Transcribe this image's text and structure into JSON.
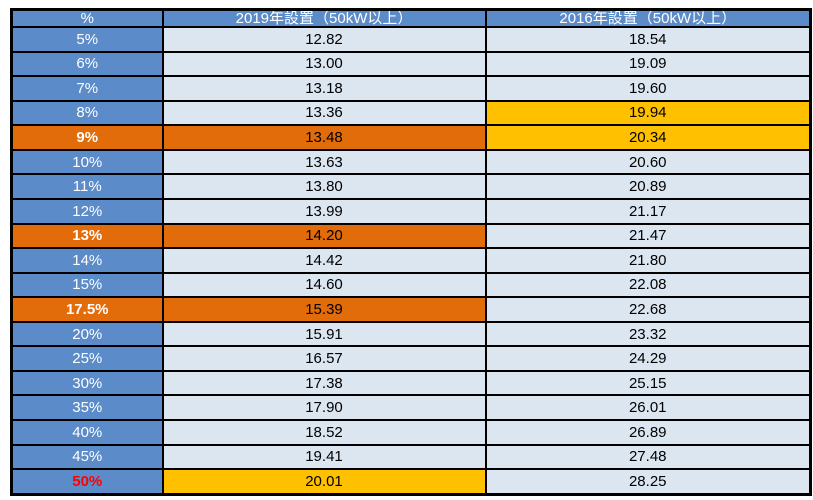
{
  "colors": {
    "header_blue": "#5b8bc9",
    "cell_light": "#dce6f1",
    "highlight_orange": "#e26b0a",
    "highlight_yellow": "#ffc000",
    "red_text": "#ff0000",
    "border_black": "#000000"
  },
  "chart_data": {
    "type": "table",
    "title": "",
    "columns": [
      "%",
      "2019年設置（50kW以上）",
      "2016年設置（50kW以上）"
    ],
    "rows": [
      {
        "label": "5%",
        "v2019": "12.82",
        "v2016": "18.54",
        "label_bg": "blue",
        "label_style": "normal",
        "v2019_bg": "light",
        "v2016_bg": "light"
      },
      {
        "label": "6%",
        "v2019": "13.00",
        "v2016": "19.09",
        "label_bg": "blue",
        "label_style": "normal",
        "v2019_bg": "light",
        "v2016_bg": "light"
      },
      {
        "label": "7%",
        "v2019": "13.18",
        "v2016": "19.60",
        "label_bg": "blue",
        "label_style": "normal",
        "v2019_bg": "light",
        "v2016_bg": "light"
      },
      {
        "label": "8%",
        "v2019": "13.36",
        "v2016": "19.94",
        "label_bg": "blue",
        "label_style": "normal",
        "v2019_bg": "light",
        "v2016_bg": "yellow"
      },
      {
        "label": "9%",
        "v2019": "13.48",
        "v2016": "20.34",
        "label_bg": "orange",
        "label_style": "bold-white",
        "v2019_bg": "orange",
        "v2016_bg": "yellow"
      },
      {
        "label": "10%",
        "v2019": "13.63",
        "v2016": "20.60",
        "label_bg": "blue",
        "label_style": "normal",
        "v2019_bg": "light",
        "v2016_bg": "light"
      },
      {
        "label": "11%",
        "v2019": "13.80",
        "v2016": "20.89",
        "label_bg": "blue",
        "label_style": "normal",
        "v2019_bg": "light",
        "v2016_bg": "light"
      },
      {
        "label": "12%",
        "v2019": "13.99",
        "v2016": "21.17",
        "label_bg": "blue",
        "label_style": "normal",
        "v2019_bg": "light",
        "v2016_bg": "light"
      },
      {
        "label": "13%",
        "v2019": "14.20",
        "v2016": "21.47",
        "label_bg": "orange",
        "label_style": "bold-white",
        "v2019_bg": "orange",
        "v2016_bg": "light"
      },
      {
        "label": "14%",
        "v2019": "14.42",
        "v2016": "21.80",
        "label_bg": "blue",
        "label_style": "normal",
        "v2019_bg": "light",
        "v2016_bg": "light"
      },
      {
        "label": "15%",
        "v2019": "14.60",
        "v2016": "22.08",
        "label_bg": "blue",
        "label_style": "normal",
        "v2019_bg": "light",
        "v2016_bg": "light"
      },
      {
        "label": "17.5%",
        "v2019": "15.39",
        "v2016": "22.68",
        "label_bg": "orange",
        "label_style": "bold-white",
        "v2019_bg": "orange",
        "v2016_bg": "light"
      },
      {
        "label": "20%",
        "v2019": "15.91",
        "v2016": "23.32",
        "label_bg": "blue",
        "label_style": "normal",
        "v2019_bg": "light",
        "v2016_bg": "light"
      },
      {
        "label": "25%",
        "v2019": "16.57",
        "v2016": "24.29",
        "label_bg": "blue",
        "label_style": "normal",
        "v2019_bg": "light",
        "v2016_bg": "light"
      },
      {
        "label": "30%",
        "v2019": "17.38",
        "v2016": "25.15",
        "label_bg": "blue",
        "label_style": "normal",
        "v2019_bg": "light",
        "v2016_bg": "light"
      },
      {
        "label": "35%",
        "v2019": "17.90",
        "v2016": "26.01",
        "label_bg": "blue",
        "label_style": "normal",
        "v2019_bg": "light",
        "v2016_bg": "light"
      },
      {
        "label": "40%",
        "v2019": "18.52",
        "v2016": "26.89",
        "label_bg": "blue",
        "label_style": "normal",
        "v2019_bg": "light",
        "v2016_bg": "light"
      },
      {
        "label": "45%",
        "v2019": "19.41",
        "v2016": "27.48",
        "label_bg": "blue",
        "label_style": "normal",
        "v2019_bg": "light",
        "v2016_bg": "light"
      },
      {
        "label": "50%",
        "v2019": "20.01",
        "v2016": "28.25",
        "label_bg": "blue",
        "label_style": "red-bold",
        "v2019_bg": "yellow",
        "v2016_bg": "light"
      }
    ]
  }
}
